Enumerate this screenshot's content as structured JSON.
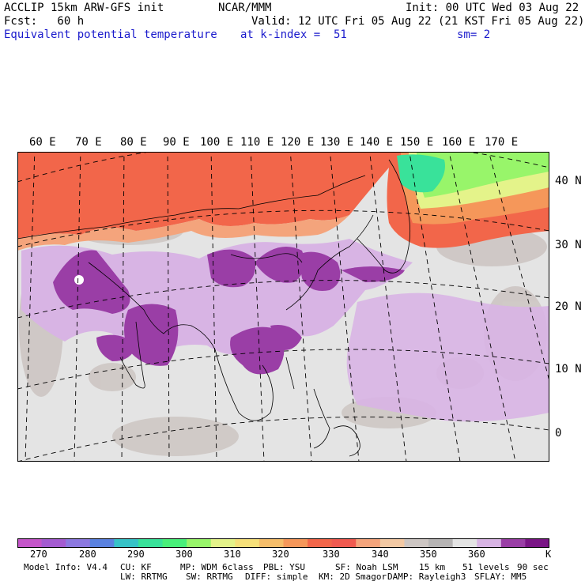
{
  "header": {
    "title": "ACCLIP 15km ARW-GFS init",
    "org": "NCAR/MMM",
    "init": "Init: 00 UTC Wed 03 Aug 22",
    "fcst": "Fcst:   60 h",
    "valid": "Valid: 12 UTC Fri 05 Aug 22 (21 KST Fri 05 Aug 22)",
    "field": "Equivalent potential temperature",
    "level": "at k-index =  51",
    "smooth": "sm= 2"
  },
  "lon_labels": [
    "60 E",
    "70 E",
    "80 E",
    "90 E",
    "100 E",
    "110 E",
    "120 E",
    "130 E",
    "140 E",
    "150 E",
    "160 E",
    "170 E"
  ],
  "lat_labels": [
    "40 N",
    "30 N",
    "20 N",
    "10 N",
    "0"
  ],
  "colorbar": {
    "colors": [
      "#c455c9",
      "#a45bd1",
      "#8c78e0",
      "#5a82e0",
      "#37c3c8",
      "#39e29a",
      "#49f07a",
      "#98f56a",
      "#e4f38a",
      "#f6e07a",
      "#f5bd6a",
      "#f5975a",
      "#f2664a",
      "#f05a50",
      "#f4a47c",
      "#f3c9a4",
      "#cdc6c3",
      "#b6b4b4",
      "#e4e4e4",
      "#d8b4e4",
      "#9a3ea6",
      "#7a1586"
    ],
    "labels": [
      "270",
      "280",
      "290",
      "300",
      "310",
      "320",
      "330",
      "340",
      "350",
      "360"
    ],
    "unit": "K"
  },
  "model_info": {
    "line1": [
      "Model Info: V4.4",
      "CU: KF",
      "MP: WDM 6class",
      "PBL: YSU",
      "SF: Noah LSM",
      "15 km",
      "51 levels",
      "90 sec"
    ],
    "line2": [
      "LW: RRTMG",
      "SW: RRTMG",
      "DIFF: simple",
      "KM: 2D Smagor",
      "DAMP: Rayleigh3",
      "SFLAY: MM5"
    ]
  },
  "colors": {
    "warm_red": "#f2664a",
    "salmon": "#f4a47c",
    "gray": "#cdc6c3",
    "light": "#e4e4e4",
    "lilac": "#d8b4e4",
    "purple": "#9a3ea6",
    "green": "#49f07a"
  }
}
